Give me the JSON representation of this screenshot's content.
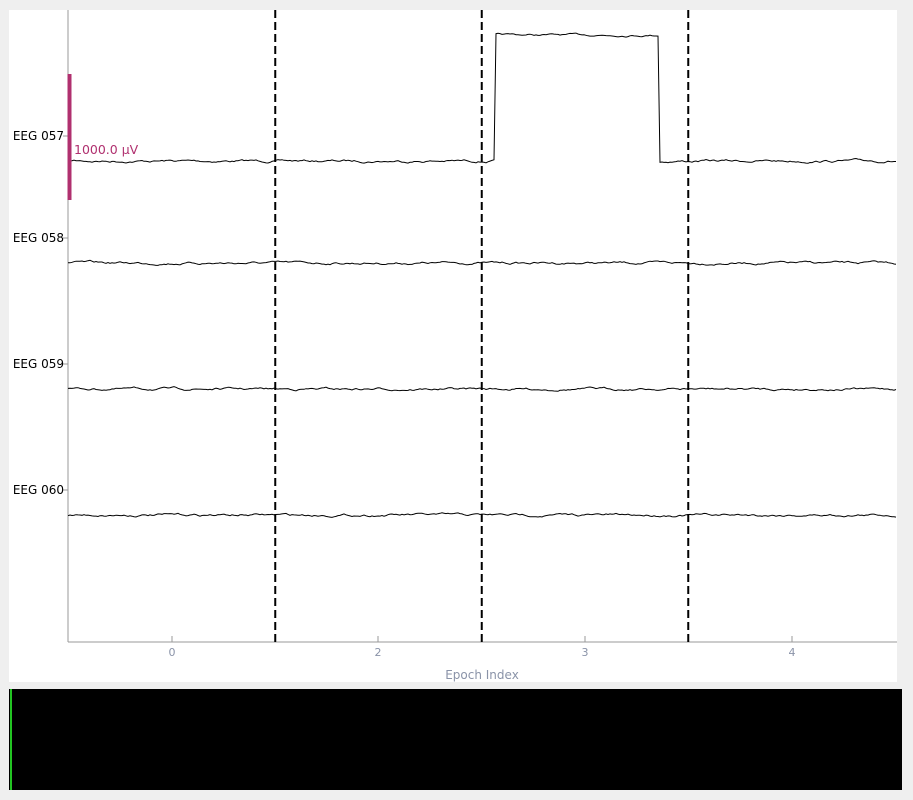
{
  "chart_data": {
    "type": "line",
    "xlabel": "Epoch Index",
    "x_tick_labels": [
      "0",
      "2",
      "3",
      "4"
    ],
    "channels": [
      "EEG 057",
      "EEG 058",
      "EEG 059",
      "EEG 060"
    ],
    "epoch_boundaries_shown": 3,
    "scale_bar_label": "1000.0 µV",
    "scale_bar_color": "#b0306f",
    "trace_color": "#000000",
    "annotation": {
      "channel": "EEG 057",
      "epoch_tick": "3",
      "type": "step artifact"
    },
    "grid": false
  },
  "overview": {
    "background": "#000000",
    "cursor_color": "#22c422"
  }
}
